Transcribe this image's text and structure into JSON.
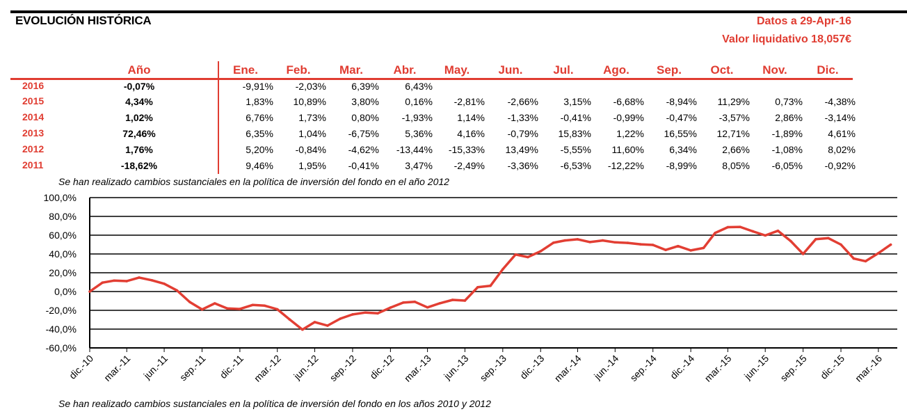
{
  "header": {
    "title": "EVOLUCIÓN HISTÓRICA",
    "date": "Datos a 29-Apr-16",
    "nav": "Valor liquidativo 18,057€"
  },
  "table": {
    "year_header": "Año",
    "months": [
      "Ene.",
      "Feb.",
      "Mar.",
      "Abr.",
      "May.",
      "Jun.",
      "Jul.",
      "Ago.",
      "Sep.",
      "Oct.",
      "Nov.",
      "Dic."
    ],
    "rows": [
      {
        "year": "2016",
        "annual": "-0,07%",
        "values": [
          "-9,91%",
          "-2,03%",
          "6,39%",
          "6,43%",
          "",
          "",
          "",
          "",
          "",
          "",
          "",
          ""
        ]
      },
      {
        "year": "2015",
        "annual": "4,34%",
        "values": [
          "1,83%",
          "10,89%",
          "3,80%",
          "0,16%",
          "-2,81%",
          "-2,66%",
          "3,15%",
          "-6,68%",
          "-8,94%",
          "11,29%",
          "0,73%",
          "-4,38%"
        ]
      },
      {
        "year": "2014",
        "annual": "1,02%",
        "values": [
          "6,76%",
          "1,73%",
          "0,80%",
          "-1,93%",
          "1,14%",
          "-1,33%",
          "-0,41%",
          "-0,99%",
          "-0,47%",
          "-3,57%",
          "2,86%",
          "-3,14%"
        ]
      },
      {
        "year": "2013",
        "annual": "72,46%",
        "values": [
          "6,35%",
          "1,04%",
          "-6,75%",
          "5,36%",
          "4,16%",
          "-0,79%",
          "15,83%",
          "1,22%",
          "16,55%",
          "12,71%",
          "-1,89%",
          "4,61%"
        ]
      },
      {
        "year": "2012",
        "annual": "1,76%",
        "values": [
          "5,20%",
          "-0,84%",
          "-4,62%",
          "-13,44%",
          "-15,33%",
          "13,49%",
          "-5,55%",
          "11,60%",
          "6,34%",
          "2,66%",
          "-1,08%",
          "8,02%"
        ]
      },
      {
        "year": "2011",
        "annual": "-18,62%",
        "values": [
          "9,46%",
          "1,95%",
          "-0,41%",
          "3,47%",
          "-2,49%",
          "-3,36%",
          "-6,53%",
          "-12,22%",
          "-8,99%",
          "8,05%",
          "-6,05%",
          "-0,92%"
        ]
      }
    ]
  },
  "notes": {
    "table_note": "Se han realizado cambios sustanciales en la política de inversión del fondo en el año 2012",
    "chart_note": "Se han realizado cambios sustanciales en la política de inversión del fondo en los años 2010 y 2012"
  },
  "colors": {
    "accent": "#e03c31",
    "line": "#e23e33"
  },
  "chart_data": {
    "type": "line",
    "title": "",
    "xlabel": "",
    "ylabel": "",
    "ylim": [
      -60,
      100
    ],
    "y_ticks": [
      "100,0%",
      "80,0%",
      "60,0%",
      "40,0%",
      "20,0%",
      "0,0%",
      "-20,0%",
      "-40,0%",
      "-60,0%"
    ],
    "grid": true,
    "legend": "none",
    "x_ticks": [
      "dic.-10",
      "mar.-11",
      "jun.-11",
      "sep.-11",
      "dic.-11",
      "mar.-12",
      "jun.-12",
      "sep.-12",
      "dic.-12",
      "mar.-13",
      "jun.-13",
      "sep.-13",
      "dic.-13",
      "mar.-14",
      "jun.-14",
      "sep.-14",
      "dic.-14",
      "mar.-15",
      "jun.-15",
      "sep.-15",
      "dic.-15",
      "mar.-16"
    ],
    "x": [
      "2010-12-31",
      "2011-01-31",
      "2011-02-28",
      "2011-03-31",
      "2011-04-30",
      "2011-05-31",
      "2011-06-30",
      "2011-07-31",
      "2011-08-31",
      "2011-09-30",
      "2011-10-31",
      "2011-11-30",
      "2011-12-31",
      "2012-01-31",
      "2012-02-29",
      "2012-03-31",
      "2012-04-30",
      "2012-05-31",
      "2012-06-30",
      "2012-07-31",
      "2012-08-31",
      "2012-09-30",
      "2012-10-31",
      "2012-11-30",
      "2012-12-31",
      "2013-01-31",
      "2013-02-28",
      "2013-03-31",
      "2013-04-30",
      "2013-05-31",
      "2013-06-30",
      "2013-07-31",
      "2013-08-31",
      "2013-09-30",
      "2013-10-31",
      "2013-11-30",
      "2013-12-31",
      "2014-01-31",
      "2014-02-28",
      "2014-03-31",
      "2014-04-30",
      "2014-05-31",
      "2014-06-30",
      "2014-07-31",
      "2014-08-31",
      "2014-09-30",
      "2014-10-31",
      "2014-11-30",
      "2014-12-31",
      "2015-01-31",
      "2015-02-28",
      "2015-03-31",
      "2015-04-30",
      "2015-05-31",
      "2015-06-30",
      "2015-07-31",
      "2015-08-31",
      "2015-09-30",
      "2015-10-31",
      "2015-11-30",
      "2015-12-31",
      "2016-01-31",
      "2016-02-29",
      "2016-03-31",
      "2016-04-30"
    ],
    "series": [
      {
        "values": [
          0,
          9.5,
          11.6,
          11.1,
          14.9,
          12.0,
          8.3,
          1.2,
          -11.1,
          -19.1,
          -12.6,
          -17.9,
          -18.6,
          -14.3,
          -15.0,
          -18.9,
          -29.8,
          -40.5,
          -32.5,
          -36.3,
          -28.9,
          -24.4,
          -22.4,
          -23.2,
          -17.1,
          -11.8,
          -10.9,
          -16.9,
          -12.5,
          -8.9,
          -9.6,
          4.6,
          6.1,
          23.7,
          39.4,
          36.7,
          42.9,
          51.9,
          54.4,
          55.6,
          52.7,
          54.4,
          52.4,
          51.8,
          50.3,
          49.6,
          44.3,
          48.4,
          43.8,
          46.4,
          62.3,
          68.5,
          68.8,
          64.1,
          59.7,
          64.7,
          53.7,
          40.0,
          55.8,
          56.9,
          50.0,
          35.1,
          32.3,
          40.8,
          49.9
        ]
      }
    ]
  }
}
